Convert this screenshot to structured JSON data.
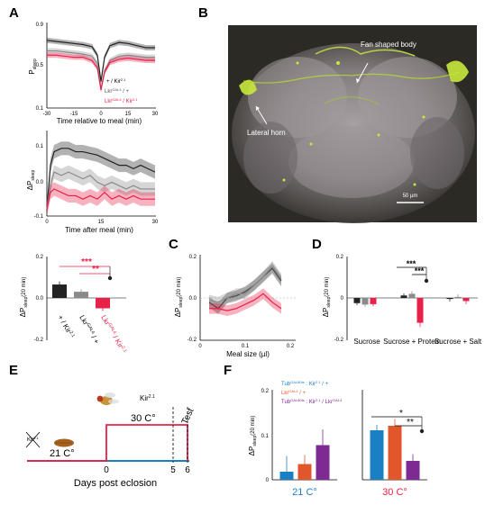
{
  "panel_labels": {
    "A": "A",
    "B": "B",
    "C": "C",
    "D": "D",
    "E": "E",
    "F": "F"
  },
  "colors": {
    "black": "#222222",
    "gray": "#8a8a8a",
    "red": "#e8214a",
    "blue": "#1b7fc4",
    "orange": "#e2562b",
    "purple": "#7d2b92",
    "green": "#c8e83c"
  },
  "panelA": {
    "top": {
      "ylabel": "P",
      "ylabel_sub": "sleep",
      "yticks": [
        "0.9",
        "0.5",
        "0.1"
      ],
      "xticks": [
        "-30",
        "-15",
        "0",
        "15",
        "30"
      ],
      "xlabel": "Time relative to meal (min)",
      "legend": [
        {
          "pre": "+ / Kir",
          "sup": "2.1",
          "post": ""
        },
        {
          "pre": "Lkr",
          "sup": "GAL4",
          "post": " / +"
        },
        {
          "pre": "Lkr",
          "sup": "GAL4",
          "post": " / Kir",
          "sup2": "2.1"
        }
      ]
    },
    "mid": {
      "ylabel": "ΔP",
      "ylabel_sub": "sleep",
      "yticks": [
        "0.1",
        "0.0",
        "-0.1"
      ],
      "xticks": [
        "0",
        "15",
        "30"
      ],
      "xlabel": "Time after meal (min)"
    },
    "bar": {
      "ylabel": "ΔP",
      "ylabel_sub": "sleep",
      "ylabel_suffix": "(20 min)",
      "yticks": [
        "0.2",
        "0.0",
        "-0.2"
      ],
      "sig": [
        "***",
        "**"
      ],
      "labels": [
        {
          "pre": "+ / Kir",
          "sup": "2.1"
        },
        {
          "pre": "Lkr",
          "sup": "GAL4",
          "post": " / +"
        },
        {
          "pre": "Lkr",
          "sup": "GAL4",
          "post": " / Kir",
          "sup2": "2.1"
        }
      ]
    }
  },
  "panelB": {
    "labels": [
      "Fan shaped body",
      "Lateral horn"
    ],
    "scale": "50 µm"
  },
  "panelC": {
    "ylabel": "ΔP",
    "ylabel_sub": "sleep",
    "ylabel_suffix": "(20 min)",
    "yticks": [
      "0.2",
      "0.0",
      "-0.2"
    ],
    "xticks": [
      "0",
      "0.1",
      "0.2"
    ],
    "xlabel": "Meal size (µl)"
  },
  "panelD": {
    "ylabel": "ΔP",
    "ylabel_sub": "sleep",
    "ylabel_suffix": "(20 min)",
    "yticks": [
      "0.2",
      "0",
      "-0.2"
    ],
    "groups": [
      "Sucrose",
      "Sucrose + Protein",
      "Sucrose + Salt"
    ],
    "sig": [
      "***",
      "***"
    ]
  },
  "panelE": {
    "kir": "Kir",
    "kir_sup": "2.1",
    "temp_high": "30 C°",
    "temp_low": "21 C°",
    "test": "Test",
    "xticks": [
      "0",
      "5",
      "6"
    ],
    "xlabel": "Days post eclosion"
  },
  "panelF": {
    "legend": [
      {
        "pre": "Tub",
        "sup": "GAL80ts",
        "mid": " : Kir",
        "sup2": "2.1",
        "post": " / +",
        "color": "#1b7fc4"
      },
      {
        "pre": "Lkr",
        "sup": "GAL4",
        "post": " / +",
        "color": "#e2562b"
      },
      {
        "pre": "Tub",
        "sup": "GAL80ts",
        "mid": " : Kir",
        "sup2": "2.1",
        "post": " / Lkr",
        "sup3": "GAL4",
        "color": "#7d2b92"
      }
    ],
    "ylabel": "ΔP",
    "ylabel_sub": "sleep",
    "ylabel_suffix": "(20 min)",
    "yticks": [
      "0.2",
      "0.1",
      "0"
    ],
    "temps": [
      "21 C°",
      "30 C°"
    ],
    "sig": [
      "*",
      "**"
    ]
  },
  "chart_data": [
    {
      "type": "line",
      "panel": "A-top",
      "xlabel": "Time relative to meal (min)",
      "ylabel": "Psleep",
      "xlim": [
        -30,
        30
      ],
      "ylim": [
        0.1,
        0.9
      ],
      "x": [
        -30,
        -25,
        -20,
        -15,
        -10,
        -5,
        -2,
        0,
        2,
        5,
        10,
        15,
        20,
        25,
        30
      ],
      "series": [
        {
          "name": "+ / Kir2.1",
          "values": [
            0.74,
            0.73,
            0.72,
            0.71,
            0.7,
            0.68,
            0.6,
            0.35,
            0.58,
            0.69,
            0.72,
            0.71,
            0.69,
            0.67,
            0.67
          ]
        },
        {
          "name": "LkrGAL4 / +",
          "values": [
            0.64,
            0.64,
            0.63,
            0.62,
            0.61,
            0.59,
            0.52,
            0.28,
            0.45,
            0.55,
            0.59,
            0.6,
            0.59,
            0.58,
            0.58
          ]
        },
        {
          "name": "LkrGAL4 / Kir2.1",
          "values": [
            0.6,
            0.6,
            0.59,
            0.58,
            0.58,
            0.55,
            0.48,
            0.27,
            0.44,
            0.53,
            0.56,
            0.57,
            0.56,
            0.55,
            0.55
          ]
        }
      ]
    },
    {
      "type": "line",
      "panel": "A-mid",
      "xlabel": "Time after meal (min)",
      "ylabel": "ΔPsleep",
      "xlim": [
        0,
        30
      ],
      "ylim": [
        -0.1,
        0.15
      ],
      "x": [
        0,
        1,
        2,
        4,
        6,
        8,
        10,
        12,
        14,
        16,
        18,
        20,
        22,
        24,
        26,
        28,
        30
      ],
      "series": [
        {
          "name": "+ / Kir2.1",
          "values": [
            -0.08,
            0.05,
            0.09,
            0.1,
            0.1,
            0.09,
            0.09,
            0.085,
            0.08,
            0.07,
            0.06,
            0.05,
            0.05,
            0.04,
            0.05,
            0.04,
            0.03
          ]
        },
        {
          "name": "LkrGAL4 / +",
          "values": [
            -0.08,
            -0.01,
            0.03,
            0.02,
            0.03,
            0.02,
            0.01,
            0.02,
            0.0,
            -0.01,
            0.0,
            -0.01,
            -0.02,
            -0.01,
            -0.02,
            -0.02,
            -0.02
          ]
        },
        {
          "name": "LkrGAL4 / Kir2.1",
          "values": [
            -0.08,
            -0.03,
            -0.02,
            -0.03,
            -0.04,
            -0.04,
            -0.05,
            -0.04,
            -0.05,
            -0.03,
            -0.05,
            -0.04,
            -0.05,
            -0.04,
            -0.05,
            -0.05,
            -0.05
          ]
        }
      ]
    },
    {
      "type": "bar",
      "panel": "A-bar",
      "ylabel": "ΔPsleep (20 min)",
      "ylim": [
        -0.2,
        0.2
      ],
      "categories": [
        "+ / Kir2.1",
        "LkrGAL4 / +",
        "LkrGAL4 / Kir2.1"
      ],
      "values": [
        0.065,
        0.03,
        -0.05
      ],
      "errors": [
        0.015,
        0.012,
        0.013
      ]
    },
    {
      "type": "line",
      "panel": "C",
      "xlabel": "Meal size (µl)",
      "ylabel": "ΔPsleep (20 min)",
      "xlim": [
        0,
        0.2
      ],
      "ylim": [
        -0.2,
        0.2
      ],
      "x": [
        0.02,
        0.04,
        0.06,
        0.08,
        0.1,
        0.12,
        0.14,
        0.16,
        0.18
      ],
      "series": [
        {
          "name": "+ / Kir2.1",
          "values": [
            -0.02,
            -0.05,
            0.0,
            0.01,
            0.03,
            0.06,
            0.1,
            0.14,
            0.08
          ]
        },
        {
          "name": "LkrGAL4 / +",
          "values": [
            -0.01,
            -0.02,
            0.0,
            0.02,
            0.02,
            0.06,
            0.1,
            0.15,
            0.09
          ]
        },
        {
          "name": "LkrGAL4 / Kir2.1",
          "values": [
            -0.05,
            -0.05,
            -0.06,
            -0.05,
            -0.03,
            -0.01,
            0.02,
            -0.02,
            -0.05
          ]
        }
      ]
    },
    {
      "type": "bar",
      "panel": "D",
      "ylabel": "ΔPsleep (20 min)",
      "ylim": [
        -0.2,
        0.2
      ],
      "categories": [
        "Sucrose",
        "Sucrose + Protein",
        "Sucrose + Salt"
      ],
      "series": [
        {
          "name": "+ / Kir2.1",
          "values": [
            -0.025,
            0.012,
            -0.005
          ],
          "errors": [
            0.01,
            0.01,
            0.012
          ]
        },
        {
          "name": "LkrGAL4 / +",
          "values": [
            -0.032,
            0.02,
            0.005
          ],
          "errors": [
            0.01,
            0.012,
            0.012
          ]
        },
        {
          "name": "LkrGAL4 / Kir2.1",
          "values": [
            -0.03,
            -0.12,
            -0.015
          ],
          "errors": [
            0.01,
            0.02,
            0.015
          ]
        }
      ]
    },
    {
      "type": "bar",
      "panel": "F",
      "ylabel": "ΔPsleep (20 min)",
      "ylim": [
        0,
        0.2
      ],
      "categories": [
        "21 C°",
        "30 C°"
      ],
      "series": [
        {
          "name": "TubGAL80ts : Kir2.1 / +",
          "values": [
            0.018,
            0.11
          ],
          "errors": [
            0.035,
            0.012
          ]
        },
        {
          "name": "LkrGAL4 / +",
          "values": [
            0.035,
            0.12
          ],
          "errors": [
            0.02,
            0.015
          ]
        },
        {
          "name": "TubGAL80ts : Kir2.1 / LkrGAL4",
          "values": [
            0.077,
            0.042
          ],
          "errors": [
            0.035,
            0.015
          ]
        }
      ]
    }
  ]
}
